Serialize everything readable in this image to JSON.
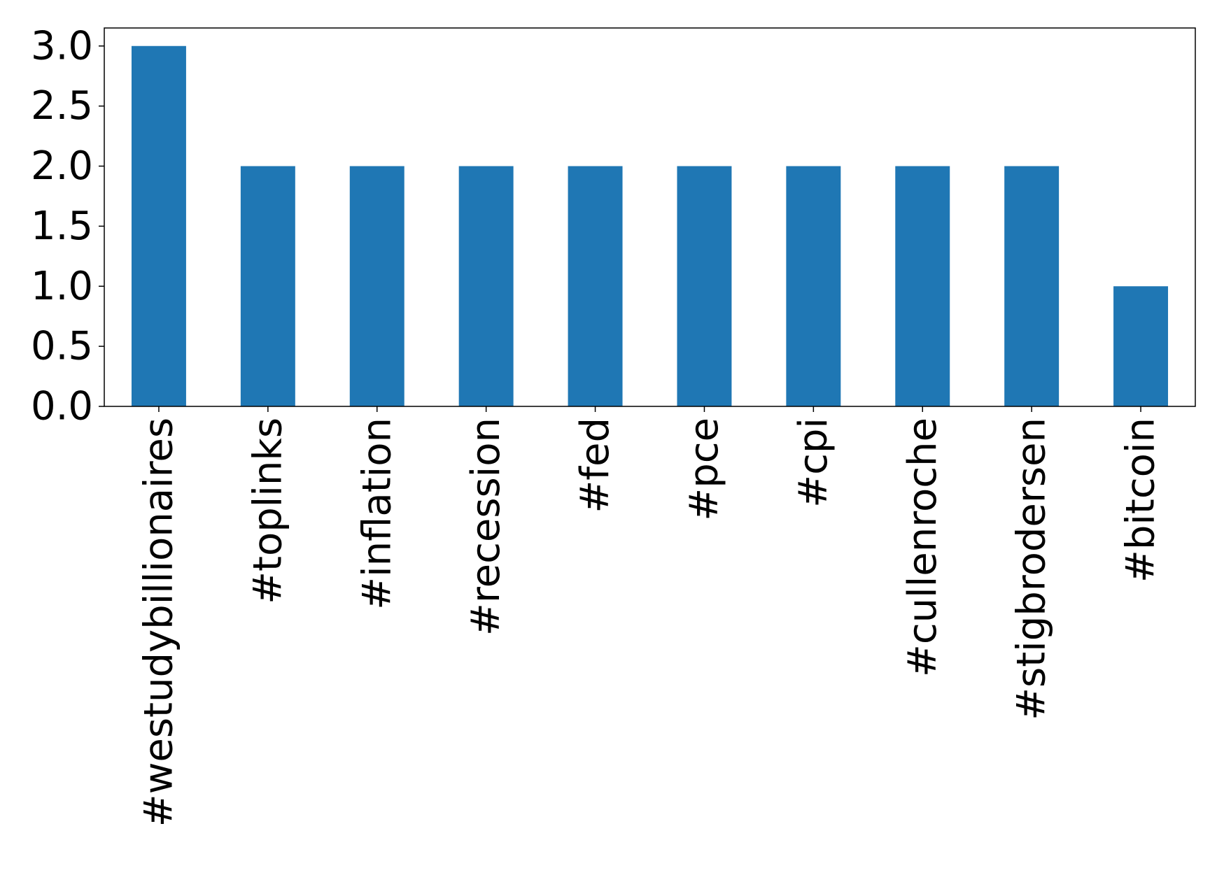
{
  "chart_data": {
    "type": "bar",
    "categories": [
      "#westudybillionaires",
      "#toplinks",
      "#inflation",
      "#recession",
      "#fed",
      "#pce",
      "#cpi",
      "#cullenroche",
      "#stigbrodersen",
      "#bitcoin"
    ],
    "values": [
      3,
      2,
      2,
      2,
      2,
      2,
      2,
      2,
      2,
      1
    ],
    "color": "#1f77b4",
    "ylim": [
      0,
      3.15
    ],
    "yticks": [
      {
        "value": 0,
        "label": "0.0"
      },
      {
        "value": 0.5,
        "label": "0.5"
      },
      {
        "value": 1,
        "label": "1.0"
      },
      {
        "value": 1.5,
        "label": "1.5"
      },
      {
        "value": 2,
        "label": "2.0"
      },
      {
        "value": 2.5,
        "label": "2.5"
      },
      {
        "value": 3,
        "label": "3.0"
      }
    ],
    "grid": false
  }
}
